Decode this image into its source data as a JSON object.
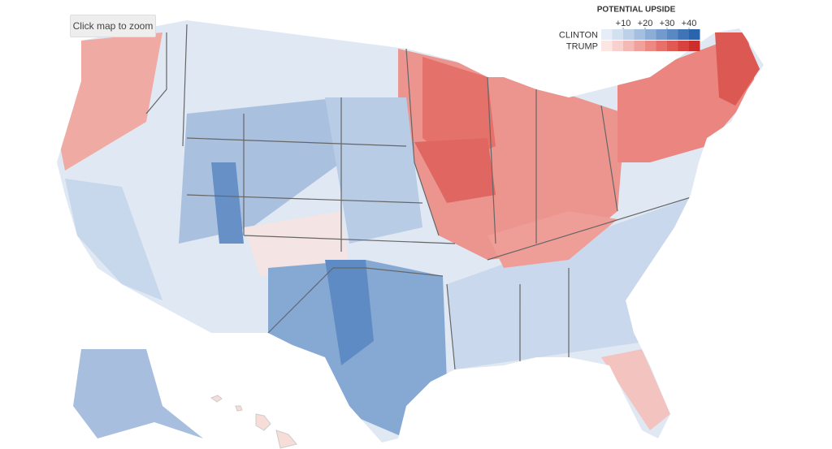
{
  "button": {
    "label": "Click map to zoom"
  },
  "legend": {
    "title": "POTENTIAL UPSIDE",
    "ticks": [
      {
        "value": 10,
        "label": "+10"
      },
      {
        "value": 20,
        "label": "+20"
      },
      {
        "value": 30,
        "label": "+30"
      },
      {
        "value": 40,
        "label": "+40"
      }
    ],
    "rows": [
      {
        "name": "CLINTON",
        "colors": [
          "#e6edf6",
          "#d3e0f0",
          "#bcd0e8",
          "#a4bfe0",
          "#8cadd6",
          "#729acc",
          "#5a88c2",
          "#3f74b7",
          "#2a64ad"
        ]
      },
      {
        "name": "TRUMP",
        "colors": [
          "#fbe6e4",
          "#f8d1ce",
          "#f4b9b4",
          "#f0a19b",
          "#ec8982",
          "#e7716a",
          "#e05a53",
          "#d8433e",
          "#cc2e2c"
        ]
      }
    ]
  }
}
